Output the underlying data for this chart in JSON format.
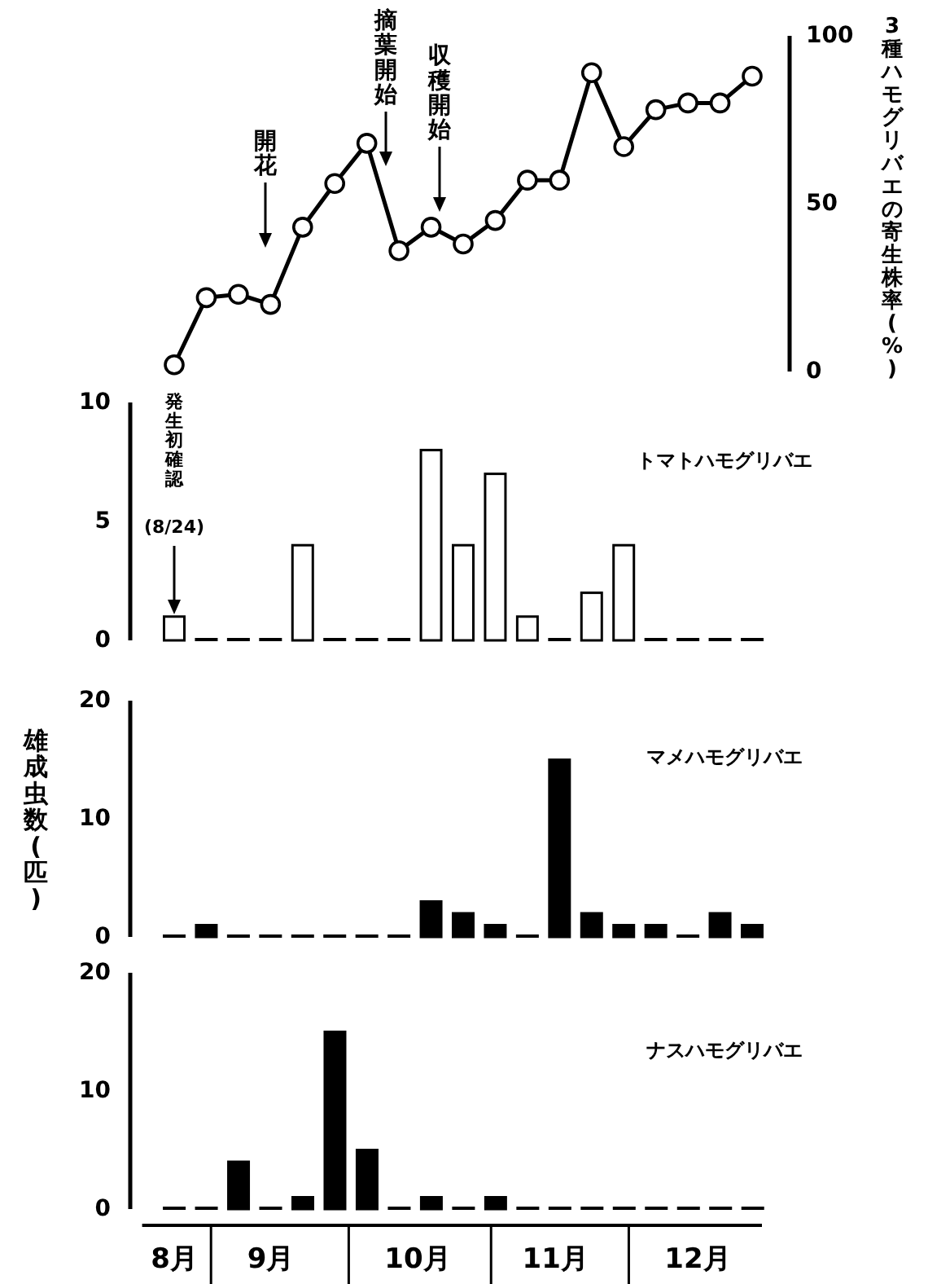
{
  "chart_data": [
    {
      "type": "line",
      "categories": [
        null,
        null,
        null,
        null,
        null,
        null,
        null,
        null,
        null,
        null,
        null,
        null,
        null,
        null,
        null,
        null,
        null,
        null,
        null
      ],
      "tick_labels": "y",
      "marker": "circle",
      "ylim": [
        0,
        100
      ],
      "yticks": [
        0,
        50,
        100
      ],
      "ylabel": "3種ハモグリバエの寄生株率(%)",
      "series": [
        {
          "color": "#000000",
          "values": [
            2,
            22,
            23,
            20,
            43,
            56,
            68,
            36,
            43,
            38,
            45,
            57,
            57,
            89,
            67,
            78,
            80,
            80,
            88
          ]
        }
      ],
      "annotations": [
        "開花",
        "摘葉開始",
        "収穫開始"
      ]
    },
    {
      "type": "bar",
      "categories": [
        null,
        null,
        null,
        null,
        null,
        null,
        null,
        null,
        null,
        null,
        null,
        null,
        null,
        null,
        null,
        null,
        null,
        null,
        null
      ],
      "ylim": [
        0,
        10
      ],
      "yticks": [
        0,
        5,
        10
      ],
      "tick_labels": "y",
      "series": [
        {
          "name": "トマトハモグリバエ",
          "color": "#ffffff",
          "values": [
            1,
            0,
            0,
            0,
            4,
            0,
            0,
            0,
            8,
            4,
            7,
            1,
            0,
            2,
            4,
            0,
            0,
            0,
            0
          ]
        }
      ],
      "annotations": [
        "発生初確認",
        "(8/24)"
      ]
    },
    {
      "type": "bar",
      "categories": [
        null,
        null,
        null,
        null,
        null,
        null,
        null,
        null,
        null,
        null,
        null,
        null,
        null,
        null,
        null,
        null,
        null,
        null,
        null
      ],
      "ylim": [
        0,
        20
      ],
      "yticks": [
        0,
        10,
        20
      ],
      "tick_labels": "y",
      "ylabel": "雄成虫数(匹)",
      "series": [
        {
          "name": "マメハモグリバエ",
          "color": "#000000",
          "values": [
            0,
            1,
            0,
            0,
            0,
            0,
            0,
            0,
            3,
            2,
            1,
            0,
            15,
            2,
            1,
            1,
            0,
            2,
            1
          ]
        }
      ]
    },
    {
      "type": "bar",
      "x": [
        "--08-24",
        "--08-31",
        "--09-07",
        "--09-14",
        "--09-21",
        "--09-28",
        "--10-05",
        "--10-12",
        "--10-19",
        "--10-26",
        "--11-02",
        "--11-09",
        "--11-16",
        "--11-23",
        "--11-30",
        "--12-07",
        "--12-14",
        "--12-21",
        "--12-28"
      ],
      "xlim": [
        "--08-17",
        "--12-30"
      ],
      "ylim": [
        0,
        20
      ],
      "yticks": [
        0,
        10,
        20
      ],
      "xticks": [
        {
          "value": "--08-24",
          "label": "8月"
        },
        {
          "value": "--09-14",
          "label": "9月"
        },
        {
          "value": "--10-16",
          "label": "10月"
        },
        {
          "value": "--11-15",
          "label": "11月"
        },
        {
          "value": "--12-16",
          "label": "12月"
        }
      ],
      "series": [
        {
          "name": "ナスハモグリバエ",
          "color": "#000000",
          "values": [
            0,
            0,
            4,
            0,
            1,
            15,
            5,
            0,
            1,
            0,
            1,
            0,
            0,
            0,
            0,
            0,
            0,
            0,
            0
          ]
        }
      ]
    }
  ]
}
